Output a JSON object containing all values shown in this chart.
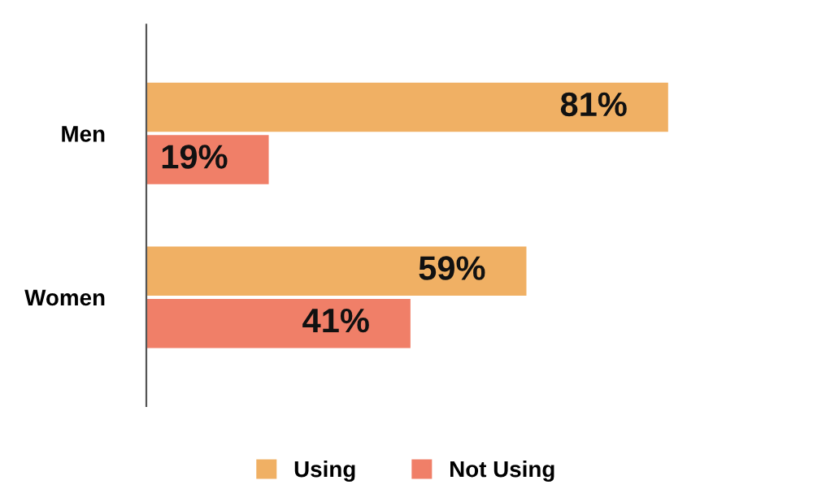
{
  "chart_data": {
    "type": "bar",
    "orientation": "horizontal",
    "categories": [
      "Men",
      "Women"
    ],
    "series": [
      {
        "name": "Using",
        "color": "#f0b064",
        "values": [
          81,
          59
        ],
        "value_labels": [
          "81%",
          "59%"
        ]
      },
      {
        "name": "Not Using",
        "color": "#f07f68",
        "values": [
          19,
          41
        ],
        "value_labels": [
          "19%",
          "41%"
        ]
      }
    ],
    "tick_labels": "y",
    "legend": "bottom",
    "grid": false
  }
}
